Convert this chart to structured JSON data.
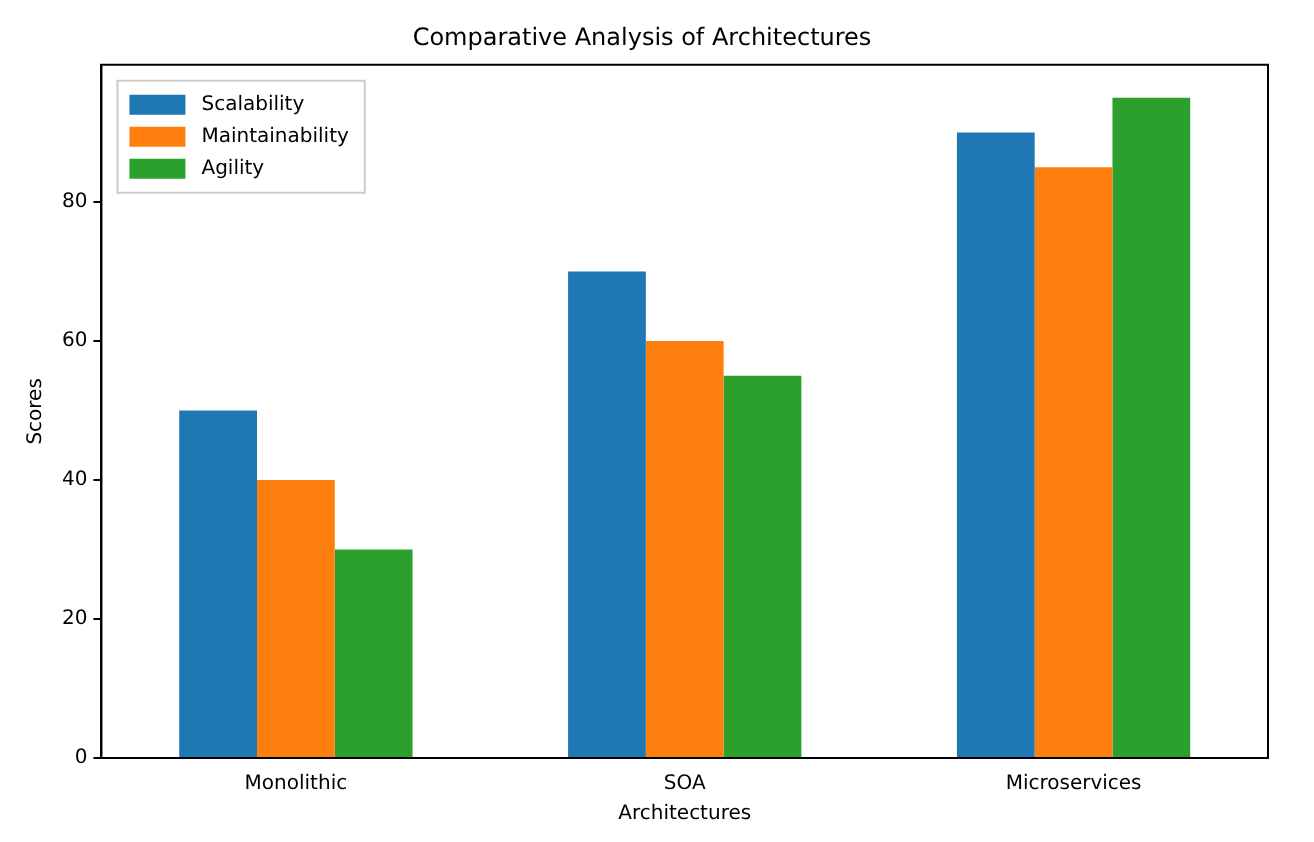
{
  "chart_data": {
    "type": "bar",
    "title": "Comparative Analysis of Architectures",
    "xlabel": "Architectures",
    "ylabel": "Scores",
    "categories": [
      "Monolithic",
      "SOA",
      "Microservices"
    ],
    "series": [
      {
        "name": "Scalability",
        "color": "#1f77b4",
        "values": [
          50,
          70,
          90
        ]
      },
      {
        "name": "Maintainability",
        "color": "#ff7f0e",
        "values": [
          40,
          60,
          85
        ]
      },
      {
        "name": "Agility",
        "color": "#2ca02c",
        "values": [
          30,
          55,
          95
        ]
      }
    ],
    "ylim": [
      0,
      99.75
    ],
    "yticks": [
      0,
      20,
      40,
      60,
      80
    ],
    "grid": false,
    "legend": "top left"
  }
}
